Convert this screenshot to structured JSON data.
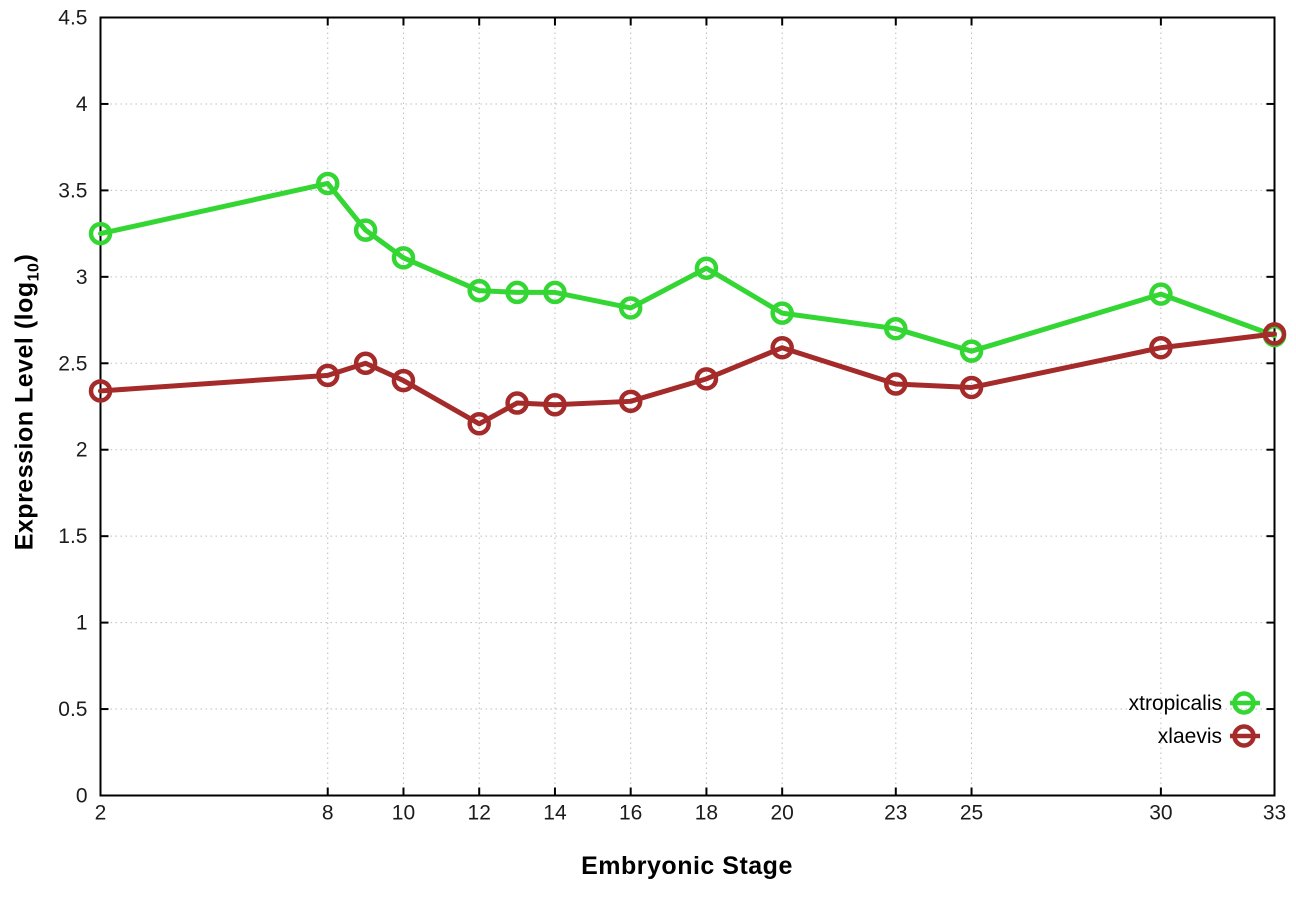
{
  "chart_data": {
    "type": "line",
    "title": "",
    "xlabel": "Embryonic Stage",
    "ylabel": "Expression Level (log10)",
    "ylabel_parts": {
      "prefix": "Expression Level (log",
      "sub": "10",
      "suffix": ")"
    },
    "xlim": [
      2,
      33
    ],
    "ylim": [
      0,
      4.5
    ],
    "grid": true,
    "legend_position": "bottom-right",
    "x": [
      2,
      8,
      9,
      10,
      12,
      13,
      14,
      16,
      18,
      20,
      23,
      25,
      30,
      33
    ],
    "series": [
      {
        "name": "xtropicalis",
        "color": "#33d633",
        "values": [
          3.25,
          3.54,
          3.27,
          3.11,
          2.92,
          2.91,
          2.91,
          2.82,
          3.05,
          2.79,
          2.7,
          2.57,
          2.9,
          2.66
        ]
      },
      {
        "name": "xlaevis",
        "color": "#a52a2a",
        "values": [
          2.34,
          2.43,
          2.5,
          2.4,
          2.15,
          2.27,
          2.26,
          2.28,
          2.41,
          2.59,
          2.38,
          2.36,
          2.59,
          2.67
        ]
      }
    ],
    "xticks": [
      {
        "value": 2,
        "label": "2"
      },
      {
        "value": 8,
        "label": "8"
      },
      {
        "value": 10,
        "label": "10"
      },
      {
        "value": 12,
        "label": "12"
      },
      {
        "value": 14,
        "label": "14"
      },
      {
        "value": 16,
        "label": "16"
      },
      {
        "value": 18,
        "label": "18"
      },
      {
        "value": 20,
        "label": "20"
      },
      {
        "value": 23,
        "label": "23"
      },
      {
        "value": 25,
        "label": "25"
      },
      {
        "value": 30,
        "label": "30"
      },
      {
        "value": 33,
        "label": "33"
      }
    ],
    "yticks": [
      {
        "value": 0,
        "label": "0"
      },
      {
        "value": 0.5,
        "label": "0.5"
      },
      {
        "value": 1,
        "label": "1"
      },
      {
        "value": 1.5,
        "label": "1.5"
      },
      {
        "value": 2,
        "label": "2"
      },
      {
        "value": 2.5,
        "label": "2.5"
      },
      {
        "value": 3,
        "label": "3"
      },
      {
        "value": 3.5,
        "label": "3.5"
      },
      {
        "value": 4,
        "label": "4"
      },
      {
        "value": 4.5,
        "label": "4.5"
      }
    ]
  },
  "colors": {
    "background": "#ffffff",
    "border": "#000000",
    "grid": "#bdbdbd",
    "tick_text": "#1c1c1c"
  }
}
